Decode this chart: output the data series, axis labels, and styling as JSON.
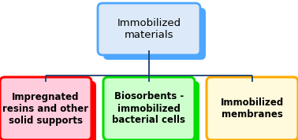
{
  "title_text": "Immobilized\nmaterials",
  "title_box_color": "#dce9f8",
  "title_box_edge_color": "#4da6ff",
  "title_shadow_color": "#4da6ff",
  "children": [
    {
      "text": "Impregnated\nresins and other\nsolid supports",
      "box_color": "#ffccdd",
      "edge_color": "#ff0000",
      "shadow_color": "#ff0000"
    },
    {
      "text": "Biosorbents -\nimmobilized\nbacterial cells",
      "box_color": "#ccffcc",
      "edge_color": "#00dd00",
      "shadow_color": "#00dd00"
    },
    {
      "text": "Immobilized\nmembranes",
      "box_color": "#fffadc",
      "edge_color": "#ffaa00",
      "shadow_color": "#ffaa00"
    }
  ],
  "line_color": "#1a3e6e",
  "background_color": "#ffffff",
  "title_fontsize": 9.5,
  "child_fontsize": 8.5
}
